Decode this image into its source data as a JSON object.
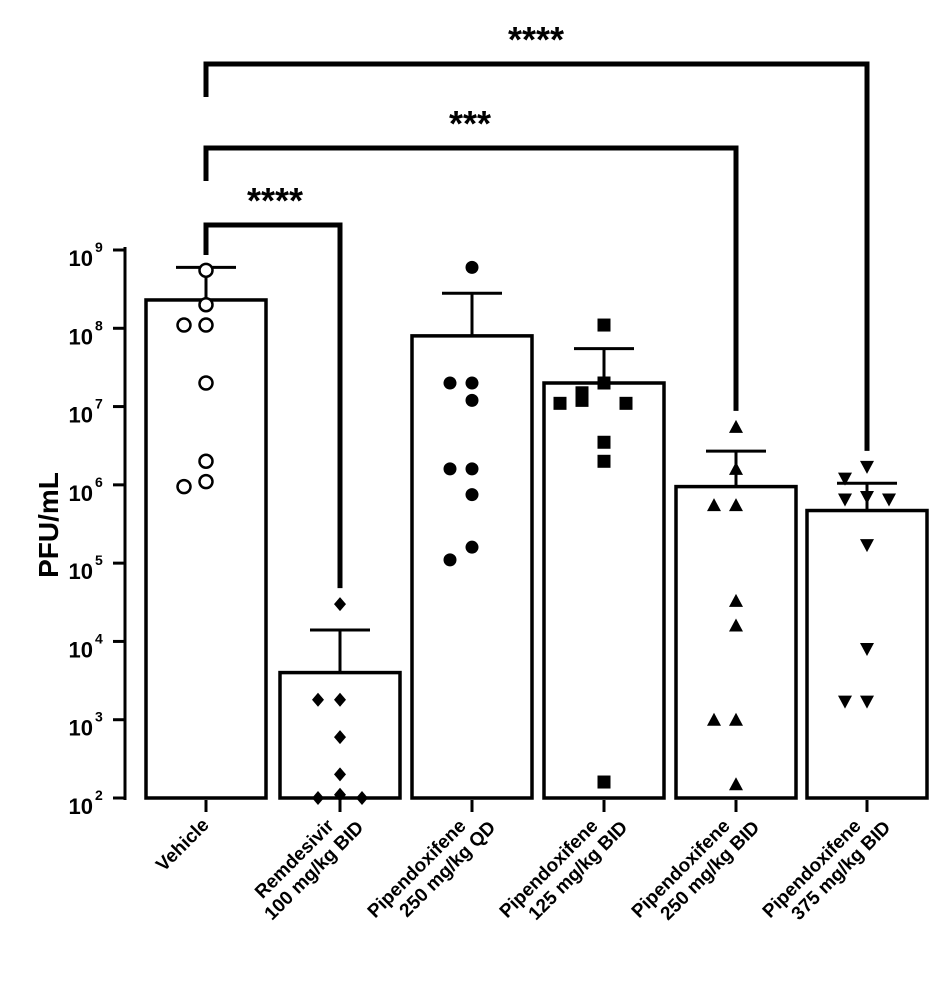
{
  "chart_data": {
    "type": "bar",
    "ylabel": "PFU/mL",
    "yscale": "log",
    "ylim": [
      100,
      1000000000
    ],
    "yticks": [
      {
        "value": 100,
        "base": "10",
        "exp": "2"
      },
      {
        "value": 1000,
        "base": "10",
        "exp": "3"
      },
      {
        "value": 10000,
        "base": "10",
        "exp": "4"
      },
      {
        "value": 100000,
        "base": "10",
        "exp": "5"
      },
      {
        "value": 1000000,
        "base": "10",
        "exp": "6"
      },
      {
        "value": 10000000,
        "base": "10",
        "exp": "7"
      },
      {
        "value": 100000000,
        "base": "10",
        "exp": "8"
      },
      {
        "value": 1000000000,
        "base": "10",
        "exp": "9"
      }
    ],
    "groups": [
      {
        "label": [
          "Vehicle"
        ],
        "mean": 230000000,
        "error_upper": 600000000,
        "marker": "circle-open",
        "points": [
          550000000,
          200000000,
          110000000,
          110000000,
          20000000,
          2000000,
          1100000,
          950000
        ]
      },
      {
        "label": [
          "Remdesivir",
          "100 mg/kg BID"
        ],
        "mean": 4000,
        "error_upper": 14000,
        "marker": "diamond",
        "points": [
          30000,
          1800,
          1800,
          600,
          200,
          110,
          100,
          100
        ]
      },
      {
        "label": [
          "Pipendoxifene",
          "250 mg/kg QD"
        ],
        "mean": 80000000,
        "error_upper": 280000000,
        "marker": "circle",
        "points": [
          600000000,
          20000000,
          20000000,
          12000000,
          1600000,
          1600000,
          750000,
          160000,
          110000
        ]
      },
      {
        "label": [
          "Pipendoxifene",
          "125 mg/kg BID"
        ],
        "mean": 20000000,
        "error_upper": 55000000,
        "marker": "square",
        "points": [
          110000000,
          20000000,
          15000000,
          12000000,
          11000000,
          11000000,
          3500000,
          2000000,
          160
        ]
      },
      {
        "label": [
          "Pipendoxifene",
          "250 mg/kg BID"
        ],
        "mean": 950000,
        "error_upper": 2700000,
        "marker": "triangle-up",
        "points": [
          5500000,
          1600000,
          550000,
          550000,
          33000,
          16000,
          1000,
          1000,
          150
        ]
      },
      {
        "label": [
          "Pipendoxifene",
          "375 mg/kg BID"
        ],
        "mean": 470000,
        "error_upper": 1050000,
        "marker": "triangle-down",
        "points": [
          1700000,
          1200000,
          700000,
          650000,
          650000,
          170000,
          8000,
          1700,
          1700
        ]
      }
    ],
    "comparisons": [
      {
        "from": 0,
        "to": 1,
        "label": "****",
        "level": 0
      },
      {
        "from": 0,
        "to": 4,
        "label": "***",
        "level": 1
      },
      {
        "from": 0,
        "to": 5,
        "label": "****",
        "level": 2
      }
    ]
  }
}
